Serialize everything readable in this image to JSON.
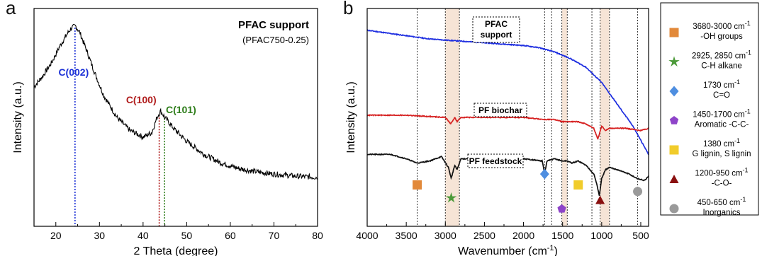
{
  "panel_labels": {
    "a": "a",
    "b": "b"
  },
  "chart_data": [
    {
      "type": "line",
      "panel": "a",
      "title": "PFAC support",
      "subtitle": "(PFAC750-0.25)",
      "xlabel": "2 Theta (degree)",
      "ylabel": "Intensity (a.u.)",
      "xlim": [
        15,
        80
      ],
      "xticks": [
        "20",
        "30",
        "40",
        "50",
        "60",
        "70",
        "80"
      ],
      "grid": false,
      "series": [
        {
          "color": "#000000",
          "x": [
            15,
            17,
            19,
            21,
            22.5,
            23.5,
            24.5,
            25.5,
            27,
            29,
            31,
            34,
            37,
            40,
            42,
            43.2,
            44,
            45,
            47,
            50,
            54,
            58,
            62,
            66,
            70,
            75,
            80
          ],
          "y": [
            0.64,
            0.69,
            0.75,
            0.83,
            0.88,
            0.91,
            0.92,
            0.89,
            0.81,
            0.7,
            0.6,
            0.5,
            0.44,
            0.41,
            0.43,
            0.5,
            0.53,
            0.5,
            0.45,
            0.39,
            0.33,
            0.29,
            0.265,
            0.25,
            0.24,
            0.23,
            0.225
          ]
        }
      ],
      "peak_labels": [
        {
          "text": "C(002)",
          "x": 24.4,
          "color": "#1a2fd6"
        },
        {
          "text": "C(100)",
          "x": 43.7,
          "color": "#b01c1c"
        },
        {
          "text": "C(101)",
          "x": 44.9,
          "color": "#2e7d1a"
        }
      ]
    },
    {
      "type": "line",
      "panel": "b",
      "xlabel_main": "Wavenumber (cm",
      "xlabel_exp": "-1",
      "xlabel_close": ")",
      "ylabel": "Intensity (a.u.)",
      "xlim": [
        4000,
        400
      ],
      "xticks": [
        "4000",
        "3500",
        "3000",
        "2500",
        "2000",
        "1500",
        "1000",
        "500"
      ],
      "grid": false,
      "reference_lines": [
        3360,
        1730,
        1640,
        1125,
        540
      ],
      "shaded_bands": [
        [
          3000,
          2820
        ],
        [
          1510,
          1440
        ],
        [
          1020,
          900
        ]
      ],
      "series": [
        {
          "name": "PFAC\nsupport",
          "color": "#1f2fe0",
          "x": [
            4000,
            3600,
            3200,
            2800,
            2400,
            2000,
            1800,
            1600,
            1400,
            1200,
            1000,
            800,
            600,
            400
          ],
          "y": [
            0.9,
            0.88,
            0.86,
            0.85,
            0.84,
            0.83,
            0.82,
            0.8,
            0.77,
            0.73,
            0.66,
            0.56,
            0.46,
            0.33
          ]
        },
        {
          "name": "PF biochar",
          "color": "#d62020",
          "x": [
            4000,
            3500,
            3000,
            2930,
            2880,
            2850,
            2800,
            2000,
            1730,
            1600,
            1500,
            1400,
            1300,
            1200,
            1100,
            1050,
            1000,
            950,
            900,
            700,
            500,
            400
          ],
          "y": [
            0.51,
            0.51,
            0.5,
            0.47,
            0.5,
            0.48,
            0.5,
            0.5,
            0.49,
            0.49,
            0.48,
            0.48,
            0.48,
            0.47,
            0.45,
            0.4,
            0.46,
            0.44,
            0.45,
            0.45,
            0.44,
            0.45
          ]
        },
        {
          "name": "PF feedstock",
          "color": "#111111",
          "x": [
            4000,
            3700,
            3500,
            3360,
            3200,
            3050,
            2960,
            2925,
            2880,
            2850,
            2800,
            2000,
            1760,
            1730,
            1700,
            1600,
            1510,
            1440,
            1380,
            1300,
            1200,
            1100,
            1060,
            1030,
            1000,
            950,
            900,
            800,
            650,
            550,
            450,
            400
          ],
          "y": [
            0.33,
            0.33,
            0.31,
            0.29,
            0.3,
            0.32,
            0.27,
            0.22,
            0.28,
            0.26,
            0.31,
            0.31,
            0.3,
            0.24,
            0.3,
            0.31,
            0.3,
            0.3,
            0.29,
            0.3,
            0.28,
            0.24,
            0.19,
            0.14,
            0.22,
            0.26,
            0.27,
            0.26,
            0.24,
            0.22,
            0.21,
            0.23
          ]
        }
      ],
      "band_markers": [
        {
          "shape": "square",
          "x": 3360,
          "level": 0.19,
          "color": "#e2893a"
        },
        {
          "shape": "star",
          "x": 2925,
          "level": 0.13,
          "color": "#4c9a3a"
        },
        {
          "shape": "diamond",
          "x": 1730,
          "level": 0.24,
          "color": "#4e8ee0"
        },
        {
          "shape": "pentagon",
          "x": 1510,
          "level": 0.08,
          "color": "#8e44c9"
        },
        {
          "shape": "square",
          "x": 1300,
          "level": 0.19,
          "color": "#f1cc2b"
        },
        {
          "shape": "triangle",
          "x": 1020,
          "level": 0.12,
          "color": "#8a1010"
        },
        {
          "shape": "circle",
          "x": 540,
          "level": 0.16,
          "color": "#9a9a9a"
        }
      ],
      "legend": [
        {
          "shape": "square",
          "color": "#e2893a",
          "line1": "3680-3000 cm",
          "sup": "-1",
          "line2": "-OH groups"
        },
        {
          "shape": "star",
          "color": "#4c9a3a",
          "line1": "2925, 2850 cm",
          "sup": "-1",
          "line2": "C-H alkane"
        },
        {
          "shape": "diamond",
          "color": "#4e8ee0",
          "line1": "1730 cm",
          "sup": "-1",
          "line2": "C=O"
        },
        {
          "shape": "pentagon",
          "color": "#8e44c9",
          "line1": "1450-1700 cm",
          "sup": "-1",
          "line2": "Aromatic -C-C-"
        },
        {
          "shape": "square",
          "color": "#f1cc2b",
          "line1": "1380 cm",
          "sup": "-1",
          "line2": "G lignin, S lignin"
        },
        {
          "shape": "triangle",
          "color": "#8a1010",
          "line1": "1200-950 cm",
          "sup": "-1",
          "line2": "-C-O-"
        },
        {
          "shape": "circle",
          "color": "#9a9a9a",
          "line1": "450-650 cm",
          "sup": "-1",
          "line2": "Inorganics"
        }
      ],
      "legend_position": "right"
    }
  ]
}
